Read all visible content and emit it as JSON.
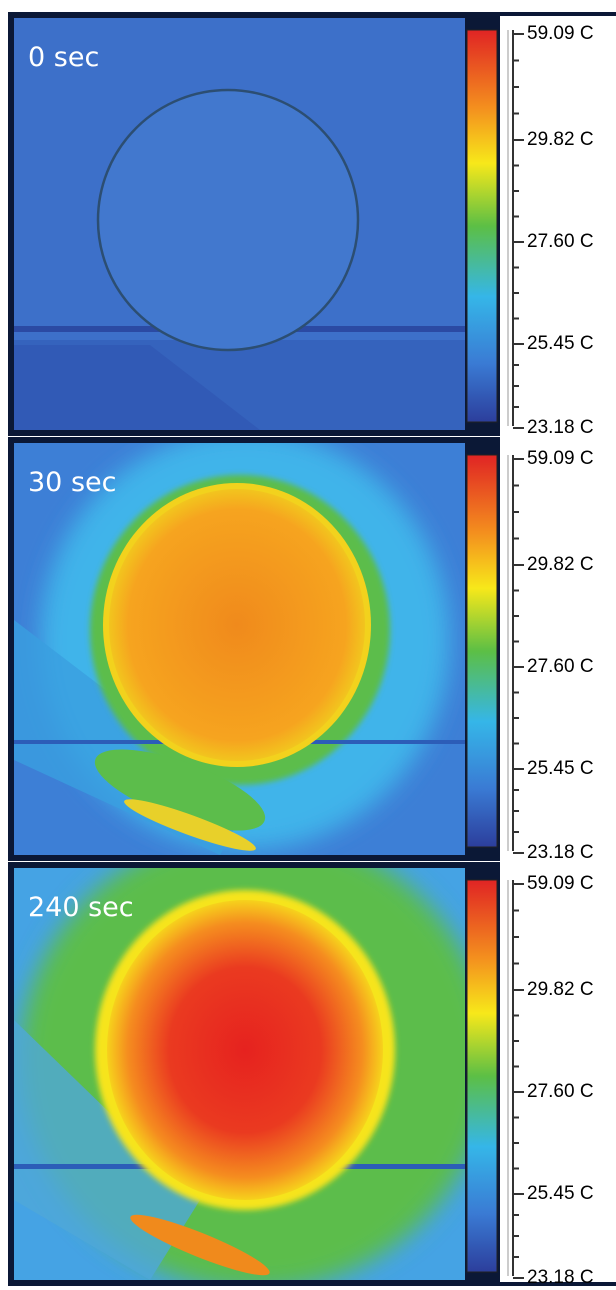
{
  "panels": [
    {
      "label": "0 sec",
      "scale": [
        "59.09 C",
        "29.82 C",
        "27.60 C",
        "25.45 C",
        "23.18 C"
      ]
    },
    {
      "label": "30 sec",
      "scale": [
        "59.09 C",
        "29.82 C",
        "27.60 C",
        "25.45 C",
        "23.18 C"
      ]
    },
    {
      "label": "240 sec",
      "scale": [
        "59.09 C",
        "29.82 C",
        "27.60 C",
        "25.45 C",
        "23.18 C"
      ]
    }
  ]
}
